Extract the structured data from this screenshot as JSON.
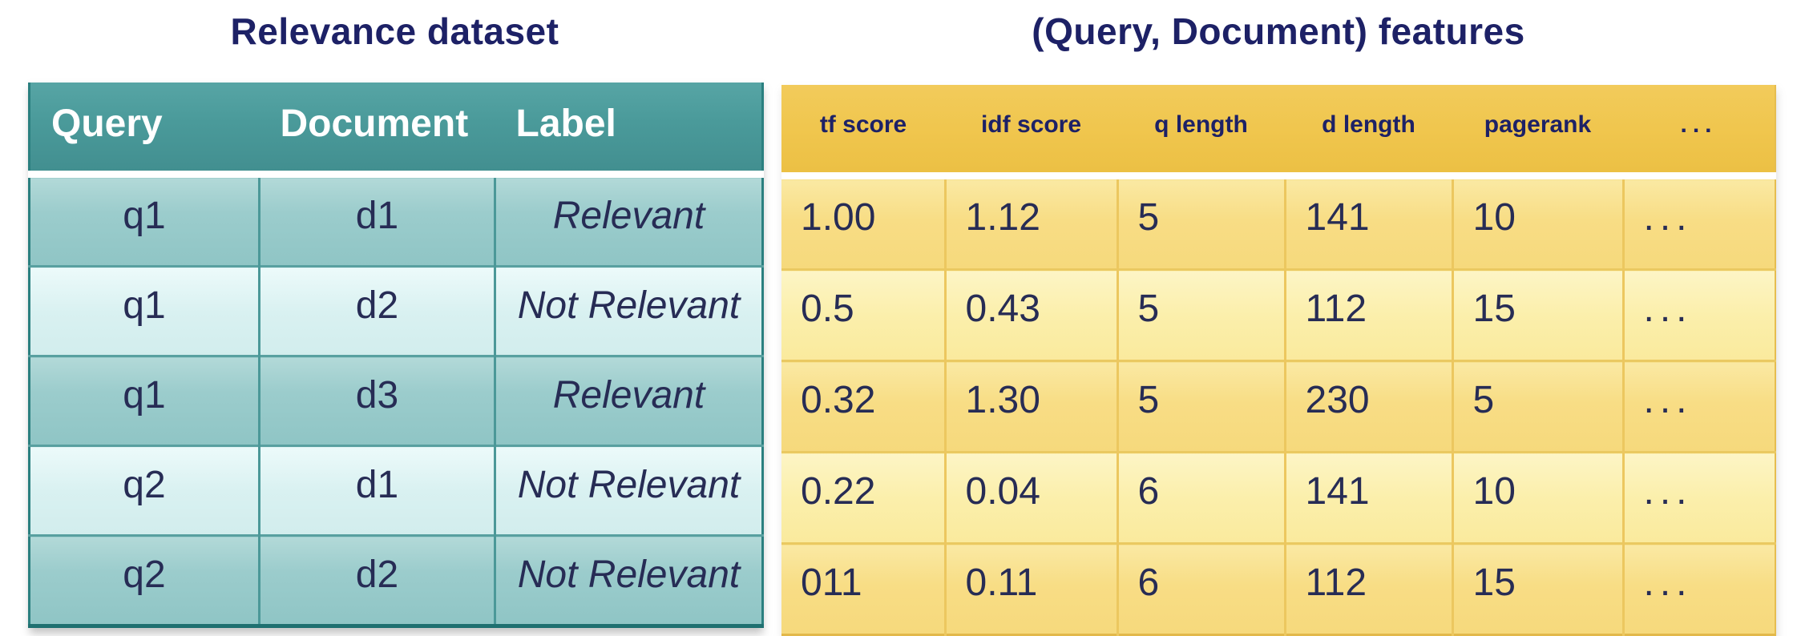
{
  "chart_data": [
    {
      "type": "table",
      "title": "Relevance dataset",
      "columns": [
        "Query",
        "Document",
        "Label"
      ],
      "rows": [
        [
          "q1",
          "d1",
          "Relevant"
        ],
        [
          "q1",
          "d2",
          "Not Relevant"
        ],
        [
          "q1",
          "d3",
          "Relevant"
        ],
        [
          "q2",
          "d1",
          "Not Relevant"
        ],
        [
          "q2",
          "d2",
          "Not Relevant"
        ]
      ]
    },
    {
      "type": "table",
      "title": "(Query, Document) features",
      "columns": [
        "tf score",
        "idf score",
        "q length",
        "d length",
        "pagerank",
        "..."
      ],
      "rows": [
        [
          "1.00",
          "1.12",
          "5",
          "141",
          "10",
          "..."
        ],
        [
          "0.5",
          "0.43",
          "5",
          "112",
          "15",
          "..."
        ],
        [
          "0.32",
          "1.30",
          "5",
          "230",
          "5",
          "..."
        ],
        [
          "0.22",
          "0.04",
          "6",
          "141",
          "10",
          "..."
        ],
        [
          "011",
          "0.11",
          "6",
          "112",
          "15",
          "..."
        ]
      ]
    }
  ],
  "colors": {
    "title_text": "#1d2166",
    "data_text": "#272c55",
    "teal_header": "#4a9a9a",
    "teal_header_text": "#ffffff",
    "teal_row_dark": "#97c9c9",
    "teal_row_light": "#dcf1f1",
    "gold_header": "#f0c64e",
    "gold_row_dark": "#f8dd84",
    "gold_row_light": "#fbefab"
  }
}
